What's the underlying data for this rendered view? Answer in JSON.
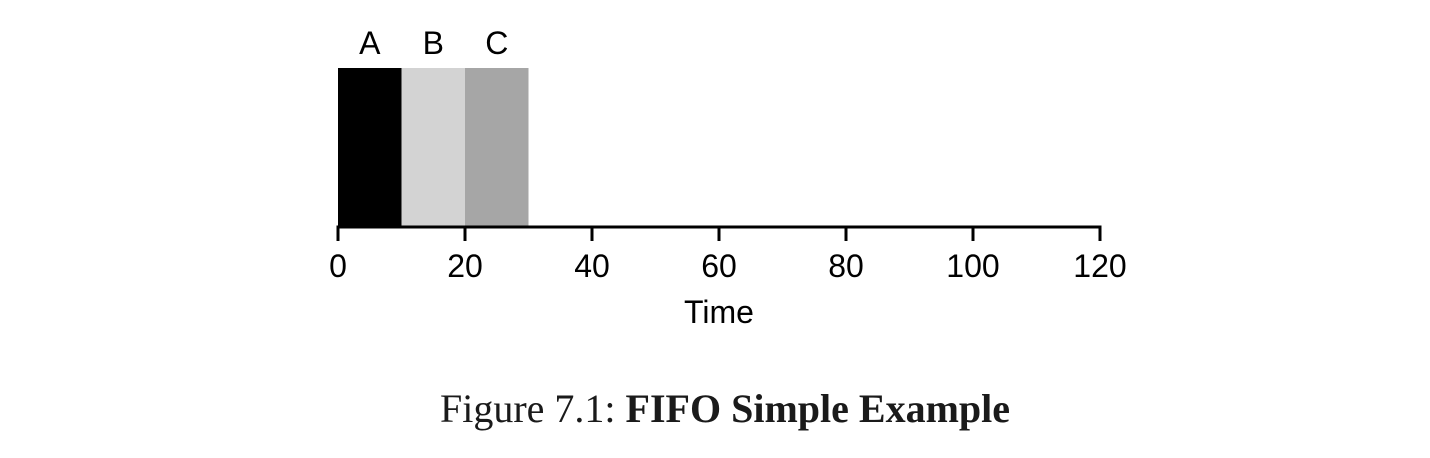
{
  "chart_data": {
    "type": "bar",
    "layout": "timeline",
    "xlabel": "Time",
    "xlim": [
      0,
      120
    ],
    "xticks": [
      0,
      20,
      40,
      60,
      80,
      100,
      120
    ],
    "grid": false,
    "legend": "none",
    "jobs": [
      {
        "name": "A",
        "start": 0,
        "end": 10,
        "color": "#000000"
      },
      {
        "name": "B",
        "start": 10,
        "end": 20,
        "color": "#d3d3d3"
      },
      {
        "name": "C",
        "start": 20,
        "end": 30,
        "color": "#a6a6a6"
      }
    ]
  },
  "caption": {
    "prefix": "Figure 7.1: ",
    "title": "FIFO Simple Example"
  }
}
